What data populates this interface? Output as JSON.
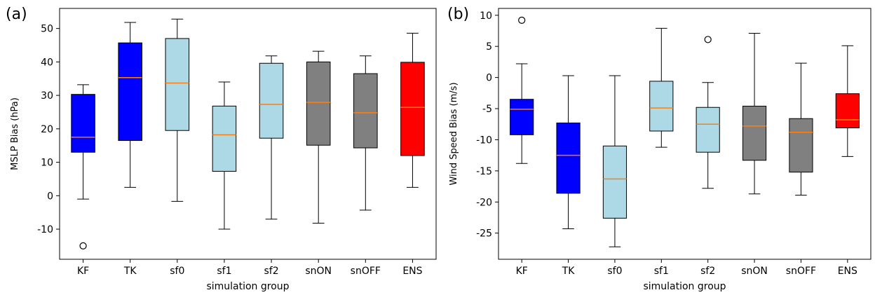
{
  "figure": {
    "panels": [
      {
        "label": "(a)"
      },
      {
        "label": "(b)"
      }
    ]
  },
  "chart_data": [
    {
      "type": "box",
      "panel_label": "(a)",
      "xlabel": "simulation group",
      "ylabel": "MSLP Bias (hPa)",
      "categories": [
        "KF",
        "TK",
        "sf0",
        "sf1",
        "sf2",
        "snON",
        "snOFF",
        "ENS"
      ],
      "ylim": [
        -19,
        56
      ],
      "yticks": [
        -10,
        0,
        10,
        20,
        30,
        40,
        50
      ],
      "grid": false,
      "median_color": "#ff7f0e",
      "boxes": [
        {
          "category": "KF",
          "color": "#0000ff",
          "whislo": -1,
          "q1": 13,
          "med": 17.5,
          "q3": 30.3,
          "whishi": 33.2,
          "fliers": [
            -15
          ]
        },
        {
          "category": "TK",
          "color": "#0000ff",
          "whislo": 2.5,
          "q1": 16.5,
          "med": 35.3,
          "q3": 45.7,
          "whishi": 51.8,
          "fliers": []
        },
        {
          "category": "sf0",
          "color": "#add8e6",
          "whislo": -1.7,
          "q1": 19.5,
          "med": 33.7,
          "q3": 47.0,
          "whishi": 52.8,
          "fliers": []
        },
        {
          "category": "sf1",
          "color": "#add8e6",
          "whislo": -10,
          "q1": 7.3,
          "med": 18.2,
          "q3": 26.8,
          "whishi": 34.0,
          "fliers": []
        },
        {
          "category": "sf2",
          "color": "#add8e6",
          "whislo": -7,
          "q1": 17.2,
          "med": 27.3,
          "q3": 39.6,
          "whishi": 41.8,
          "fliers": []
        },
        {
          "category": "snON",
          "color": "#808080",
          "whislo": -8.2,
          "q1": 15.1,
          "med": 27.9,
          "q3": 40.0,
          "whishi": 43.2,
          "fliers": []
        },
        {
          "category": "snOFF",
          "color": "#808080",
          "whislo": -4.3,
          "q1": 14.3,
          "med": 24.8,
          "q3": 36.5,
          "whishi": 41.8,
          "fliers": []
        },
        {
          "category": "ENS",
          "color": "#ff0000",
          "whislo": 2.5,
          "q1": 12.0,
          "med": 26.4,
          "q3": 39.9,
          "whishi": 48.6,
          "fliers": []
        }
      ]
    },
    {
      "type": "box",
      "panel_label": "(b)",
      "xlabel": "simulation group",
      "ylabel": "Wind Speed Bias (m/s)",
      "categories": [
        "KF",
        "TK",
        "sf0",
        "sf1",
        "sf2",
        "snON",
        "snOFF",
        "ENS"
      ],
      "ylim": [
        -29.2,
        11.1
      ],
      "yticks": [
        -25,
        -20,
        -15,
        -10,
        -5,
        0,
        5,
        10
      ],
      "grid": false,
      "median_color": "#ff7f0e",
      "boxes": [
        {
          "category": "KF",
          "color": "#0000ff",
          "whislo": -13.8,
          "q1": -9.2,
          "med": -5.1,
          "q3": -3.5,
          "whishi": 2.2,
          "fliers": [
            9.2
          ]
        },
        {
          "category": "TK",
          "color": "#0000ff",
          "whislo": -24.3,
          "q1": -18.6,
          "med": -12.5,
          "q3": -7.3,
          "whishi": 0.3,
          "fliers": []
        },
        {
          "category": "sf0",
          "color": "#add8e6",
          "whislo": -27.2,
          "q1": -22.6,
          "med": -16.3,
          "q3": -11.0,
          "whishi": 0.3,
          "fliers": []
        },
        {
          "category": "sf1",
          "color": "#add8e6",
          "whislo": -11.2,
          "q1": -8.6,
          "med": -4.9,
          "q3": -0.6,
          "whishi": 7.9,
          "fliers": []
        },
        {
          "category": "sf2",
          "color": "#add8e6",
          "whislo": -17.8,
          "q1": -12.0,
          "med": -7.5,
          "q3": -4.8,
          "whishi": -0.8,
          "fliers": [
            6.1
          ]
        },
        {
          "category": "snON",
          "color": "#808080",
          "whislo": -18.7,
          "q1": -13.3,
          "med": -7.8,
          "q3": -4.6,
          "whishi": 7.1,
          "fliers": []
        },
        {
          "category": "snOFF",
          "color": "#808080",
          "whislo": -18.9,
          "q1": -15.2,
          "med": -8.8,
          "q3": -6.6,
          "whishi": 2.3,
          "fliers": []
        },
        {
          "category": "ENS",
          "color": "#ff0000",
          "whislo": -12.7,
          "q1": -8.1,
          "med": -6.8,
          "q3": -2.6,
          "whishi": 5.1,
          "fliers": []
        }
      ]
    }
  ]
}
